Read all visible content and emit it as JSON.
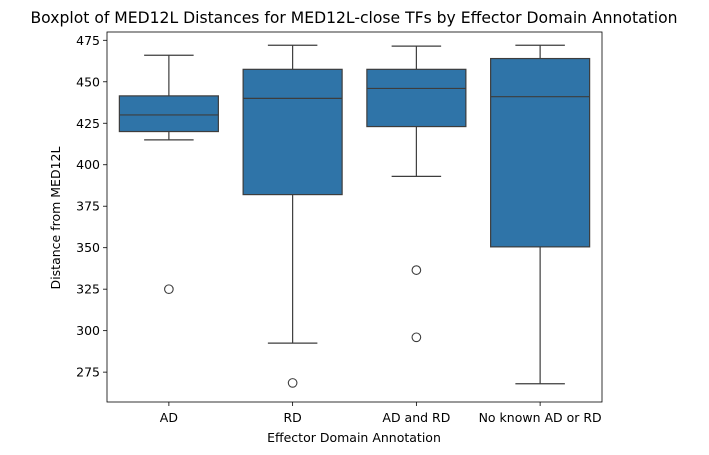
{
  "chart_data": {
    "type": "boxplot",
    "title": "Boxplot of MED12L Distances for MED12L-close TFs by Effector Domain Annotation",
    "xlabel": "Effector Domain Annotation",
    "ylabel": "Distance from MED12L",
    "ylim": [
      257,
      480
    ],
    "yticks": [
      275,
      300,
      325,
      350,
      375,
      400,
      425,
      450,
      475
    ],
    "grid": false,
    "legend": "none",
    "colors": {
      "box": "#2f74a8",
      "line": "#3d3d3d"
    },
    "categories": [
      "AD",
      "RD",
      "AD and RD",
      "No known AD or RD"
    ],
    "boxes": [
      {
        "category": "AD",
        "whisker_low": 415,
        "q1": 420,
        "median": 430,
        "q3": 441.5,
        "whisker_high": 466,
        "outliers": [
          325
        ]
      },
      {
        "category": "RD",
        "whisker_low": 292.5,
        "q1": 382,
        "median": 440,
        "q3": 457.5,
        "whisker_high": 472,
        "outliers": [
          268.5
        ]
      },
      {
        "category": "AD and RD",
        "whisker_low": 393,
        "q1": 423,
        "median": 446,
        "q3": 457.5,
        "whisker_high": 471.5,
        "outliers": [
          336.5,
          296
        ]
      },
      {
        "category": "No known AD or RD",
        "whisker_low": 268,
        "q1": 350.5,
        "median": 441,
        "q3": 464,
        "whisker_high": 472,
        "outliers": []
      }
    ]
  }
}
